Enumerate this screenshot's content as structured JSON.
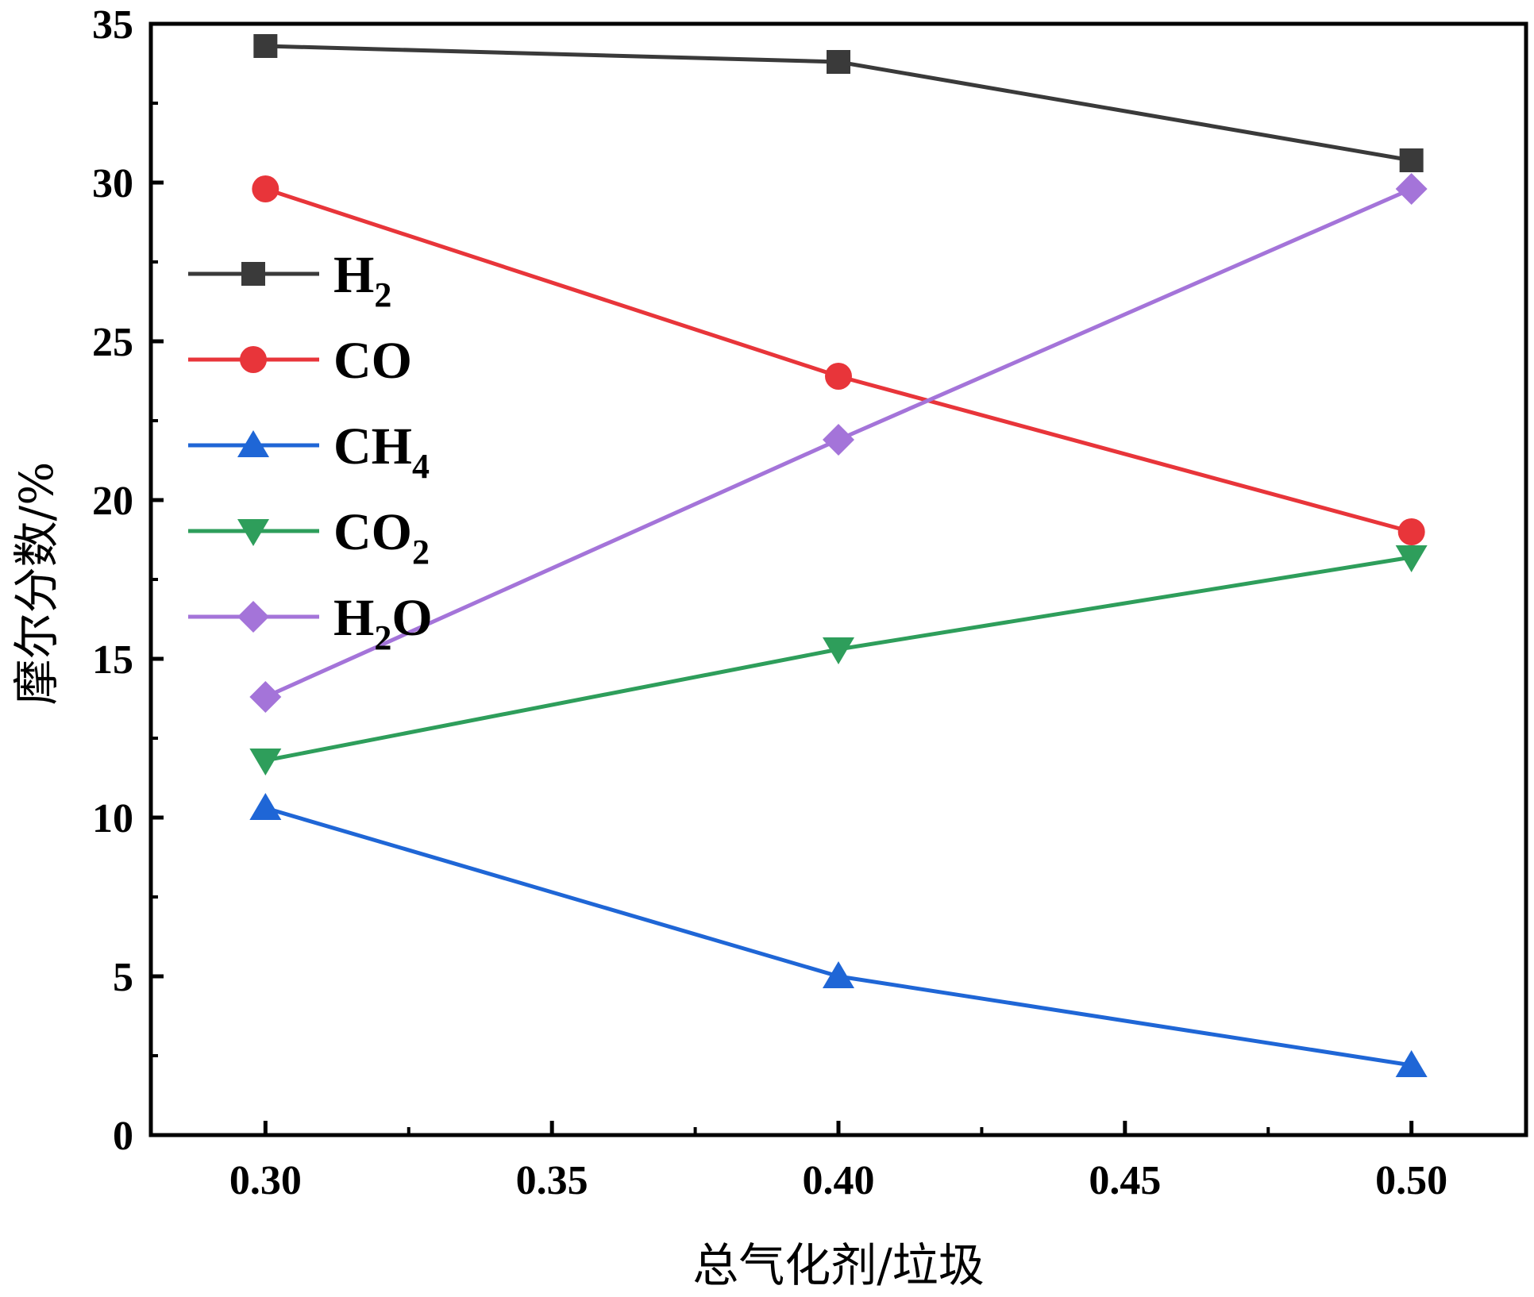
{
  "chart_data": {
    "type": "line",
    "title": "",
    "xlabel": "总气化剂/垃圾",
    "ylabel": "摩尔分数/%",
    "x": [
      0.3,
      0.4,
      0.5
    ],
    "xlim": [
      0.28,
      0.52
    ],
    "ylim": [
      0,
      35
    ],
    "xticks": [
      0.3,
      0.35,
      0.4,
      0.45,
      0.5
    ],
    "xtick_labels": [
      "0.30",
      "0.35",
      "0.40",
      "0.45",
      "0.50"
    ],
    "yticks": [
      0,
      5,
      10,
      15,
      20,
      25,
      30,
      35
    ],
    "ytick_labels": [
      "0",
      "5",
      "10",
      "15",
      "20",
      "25",
      "30",
      "35"
    ],
    "grid": false,
    "legend_position": "upper-left",
    "series": [
      {
        "name": "H2",
        "label_main": "H",
        "label_sub": "2",
        "label_tail": "",
        "color": "#3a3a3a",
        "marker": "square",
        "values": [
          34.3,
          33.8,
          30.7
        ]
      },
      {
        "name": "CO",
        "label_main": "CO",
        "label_sub": "",
        "label_tail": "",
        "color": "#e8353a",
        "marker": "circle",
        "values": [
          29.8,
          23.9,
          19.0
        ]
      },
      {
        "name": "CH4",
        "label_main": "CH",
        "label_sub": "4",
        "label_tail": "",
        "color": "#1f66d6",
        "marker": "triangle-up",
        "values": [
          10.3,
          5.0,
          2.2
        ]
      },
      {
        "name": "CO2",
        "label_main": "CO",
        "label_sub": "2",
        "label_tail": "",
        "color": "#2e9e5b",
        "marker": "triangle-down",
        "values": [
          11.8,
          15.3,
          18.2
        ]
      },
      {
        "name": "H2O",
        "label_main": "H",
        "label_sub": "2",
        "label_tail": "O",
        "color": "#a474d9",
        "marker": "diamond",
        "values": [
          13.8,
          21.9,
          29.8
        ]
      }
    ]
  }
}
